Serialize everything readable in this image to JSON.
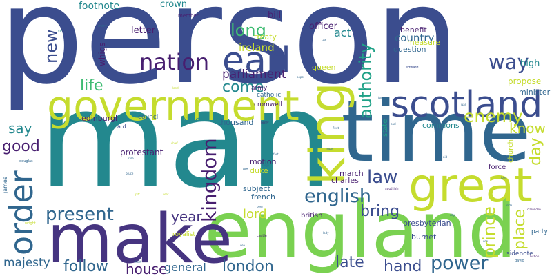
{
  "palette": {
    "navy": "#3b4d8e",
    "indigo": "#463480",
    "purple": "#481f70",
    "teal": "#23888e",
    "slate": "#30668e",
    "green": "#3fbc73",
    "lime": "#7ad151",
    "yellow": "#c5dc2e",
    "aqua": "#1fa187"
  },
  "words": [
    {
      "text": "person",
      "color": "navy"
    },
    {
      "text": "man",
      "color": "teal"
    },
    {
      "text": "time",
      "color": "slate"
    },
    {
      "text": "england",
      "color": "lime"
    },
    {
      "text": "make",
      "color": "indigo"
    },
    {
      "text": "government",
      "color": "yellow"
    },
    {
      "text": "king",
      "color": "yellow"
    },
    {
      "text": "great",
      "color": "yellow"
    },
    {
      "text": "scotland",
      "color": "navy"
    },
    {
      "text": "earl",
      "color": "navy"
    },
    {
      "text": "order",
      "color": "slate"
    },
    {
      "text": "nation",
      "color": "purple"
    },
    {
      "text": "kingdom",
      "color": "purple"
    },
    {
      "text": "authority",
      "color": "aqua"
    },
    {
      "text": "english",
      "color": "slate"
    },
    {
      "text": "power",
      "color": "slate"
    },
    {
      "text": "present",
      "color": "slate"
    },
    {
      "text": "way",
      "color": "navy"
    },
    {
      "text": "enemy",
      "color": "yellow"
    },
    {
      "text": "law",
      "color": "navy"
    },
    {
      "text": "prince",
      "color": "yellow"
    },
    {
      "text": "long",
      "color": "green"
    },
    {
      "text": "new",
      "color": "navy"
    },
    {
      "text": "life",
      "color": "green"
    },
    {
      "text": "come",
      "color": "teal"
    },
    {
      "text": "good",
      "color": "purple"
    },
    {
      "text": "london",
      "color": "slate"
    },
    {
      "text": "follow",
      "color": "slate"
    },
    {
      "text": "hand",
      "color": "navy"
    },
    {
      "text": "late",
      "color": "navy"
    },
    {
      "text": "bring",
      "color": "navy"
    },
    {
      "text": "year",
      "color": "indigo"
    },
    {
      "text": "place",
      "color": "yellow"
    },
    {
      "text": "day",
      "color": "yellow"
    },
    {
      "text": "know",
      "color": "yellow"
    },
    {
      "text": "house",
      "color": "purple"
    },
    {
      "text": "say",
      "color": "teal"
    },
    {
      "text": "parliament",
      "color": "purple"
    },
    {
      "text": "majesty",
      "color": "slate"
    },
    {
      "text": "general",
      "color": "slate"
    },
    {
      "text": "lord",
      "color": "yellow"
    },
    {
      "text": "country",
      "color": "slate"
    },
    {
      "text": "act",
      "color": "teal"
    },
    {
      "text": "ireland",
      "color": "yellow"
    },
    {
      "text": "footnote",
      "color": "teal"
    },
    {
      "text": "letter",
      "color": "purple"
    },
    {
      "text": "crown",
      "color": "teal"
    },
    {
      "text": "bill",
      "color": "purple"
    },
    {
      "text": "officer",
      "color": "purple"
    },
    {
      "text": "whigs",
      "color": "purple"
    },
    {
      "text": "high",
      "color": "teal"
    },
    {
      "text": "propose",
      "color": "yellow"
    },
    {
      "text": "minister",
      "color": "slate"
    },
    {
      "text": "question",
      "color": "slate"
    },
    {
      "text": "measure",
      "color": "yellow"
    },
    {
      "text": "benefit",
      "color": "purple"
    },
    {
      "text": "queen",
      "color": "yellow"
    },
    {
      "text": "treaty",
      "color": "yellow"
    },
    {
      "text": "protestant",
      "color": "purple"
    },
    {
      "text": "edinburgh",
      "color": "purple"
    },
    {
      "text": "william",
      "color": "teal"
    },
    {
      "text": "thousand",
      "color": "slate"
    },
    {
      "text": "council",
      "color": "slate"
    },
    {
      "text": "cromwell",
      "color": "purple"
    },
    {
      "text": "catholic",
      "color": "slate"
    },
    {
      "text": "army",
      "color": "purple"
    },
    {
      "text": "commons",
      "color": "teal"
    },
    {
      "text": "church",
      "color": "yellow"
    },
    {
      "text": "force",
      "color": "purple"
    },
    {
      "text": "state",
      "color": "aqua"
    },
    {
      "text": "motion",
      "color": "purple"
    },
    {
      "text": "duke",
      "color": "yellow"
    },
    {
      "text": "subject",
      "color": "slate"
    },
    {
      "text": "french",
      "color": "slate"
    },
    {
      "text": "march",
      "color": "purple"
    },
    {
      "text": "charles",
      "color": "purple"
    },
    {
      "text": "presbyterian",
      "color": "navy"
    },
    {
      "text": "british",
      "color": "purple"
    },
    {
      "text": "burnet",
      "color": "navy"
    },
    {
      "text": "sidenote",
      "color": "navy"
    },
    {
      "text": "party",
      "color": "slate"
    },
    {
      "text": "royalist",
      "color": "yellow"
    },
    {
      "text": "james",
      "color": "slate"
    },
    {
      "text": "a.d",
      "color": "navy"
    },
    {
      "text": "member",
      "color": "purple"
    },
    {
      "text": "mary",
      "color": "slate"
    },
    {
      "text": "edward",
      "color": "navy"
    },
    {
      "text": "douglas",
      "color": "slate"
    },
    {
      "text": "scottish",
      "color": "purple"
    },
    {
      "text": "castle",
      "color": "purple"
    },
    {
      "text": "david",
      "color": "slate"
    },
    {
      "text": "wright",
      "color": "yellow"
    },
    {
      "text": "clarendon",
      "color": "purple"
    },
    {
      "text": "bishop",
      "color": "purple"
    },
    {
      "text": "sir",
      "color": "teal"
    },
    {
      "text": "john",
      "color": "slate"
    },
    {
      "text": "henry",
      "color": "purple"
    },
    {
      "text": "reign",
      "color": "slate"
    },
    {
      "text": "bruce",
      "color": "slate"
    },
    {
      "text": "old",
      "color": "slate"
    },
    {
      "text": "peer",
      "color": "slate"
    },
    {
      "text": "land",
      "color": "yellow"
    },
    {
      "text": "rule",
      "color": "slate"
    },
    {
      "text": "seat",
      "color": "yellow"
    },
    {
      "text": "pitt",
      "color": "yellow"
    },
    {
      "text": "tory",
      "color": "slate"
    },
    {
      "text": "chief",
      "color": "yellow"
    },
    {
      "text": "fleet",
      "color": "slate"
    },
    {
      "text": "war",
      "color": "slate"
    },
    {
      "text": "lady",
      "color": "slate"
    },
    {
      "text": "lord",
      "color": "slate"
    },
    {
      "text": "sea",
      "color": "slate"
    },
    {
      "text": "side",
      "color": "slate"
    },
    {
      "text": "faith",
      "color": "slate"
    },
    {
      "text": "city",
      "color": "slate"
    },
    {
      "text": "pope",
      "color": "slate"
    },
    {
      "text": "hope",
      "color": "slate"
    },
    {
      "text": "earl",
      "color": "slate"
    },
    {
      "text": "fact",
      "color": "slate"
    },
    {
      "text": "son",
      "color": "slate"
    },
    {
      "text": "aid",
      "color": "slate"
    },
    {
      "text": "tax",
      "color": "slate"
    }
  ]
}
